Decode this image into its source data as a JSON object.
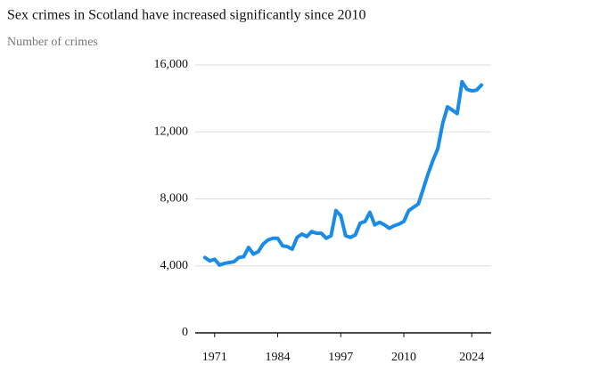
{
  "chart_data": {
    "type": "line",
    "title": "Sex crimes in Scotland have increased significantly since 2010",
    "subtitle": "Number of crimes",
    "x": [
      1969,
      1970,
      1971,
      1972,
      1973,
      1974,
      1975,
      1976,
      1977,
      1978,
      1979,
      1980,
      1981,
      1982,
      1983,
      1984,
      1985,
      1986,
      1987,
      1988,
      1989,
      1990,
      1991,
      1992,
      1993,
      1994,
      1995,
      1996,
      1997,
      1998,
      1999,
      2000,
      2001,
      2002,
      2003,
      2004,
      2005,
      2006,
      2007,
      2008,
      2009,
      2010,
      2011,
      2012,
      2013,
      2014,
      2015,
      2016,
      2017,
      2018,
      2019,
      2020,
      2021,
      2022,
      2023,
      2024,
      2025,
      2026
    ],
    "values": [
      4500,
      4300,
      4400,
      4050,
      4150,
      4200,
      4250,
      4500,
      4550,
      5100,
      4700,
      4850,
      5300,
      5550,
      5650,
      5650,
      5200,
      5150,
      5000,
      5700,
      5900,
      5750,
      6050,
      5950,
      5950,
      5650,
      5800,
      7300,
      7000,
      5800,
      5700,
      5850,
      6550,
      6650,
      7200,
      6450,
      6600,
      6450,
      6250,
      6400,
      6500,
      6650,
      7300,
      7500,
      7700,
      8600,
      9500,
      10300,
      11000,
      12500,
      13500,
      13300,
      13100,
      15000,
      14550,
      14450,
      14500,
      14800
    ],
    "color": "#1a8be6",
    "xlim": [
      1967,
      2028
    ],
    "xticks": [
      1971,
      1984,
      1997,
      2010,
      2024
    ],
    "ylim": [
      0,
      16000
    ],
    "yticks": [
      0,
      {
        "value": 4000,
        "label": "4,000"
      },
      {
        "value": 8000,
        "label": "8,000"
      },
      {
        "value": 12000,
        "label": "12,000"
      },
      {
        "value": 16000,
        "label": "16,000"
      }
    ],
    "grid": true
  }
}
